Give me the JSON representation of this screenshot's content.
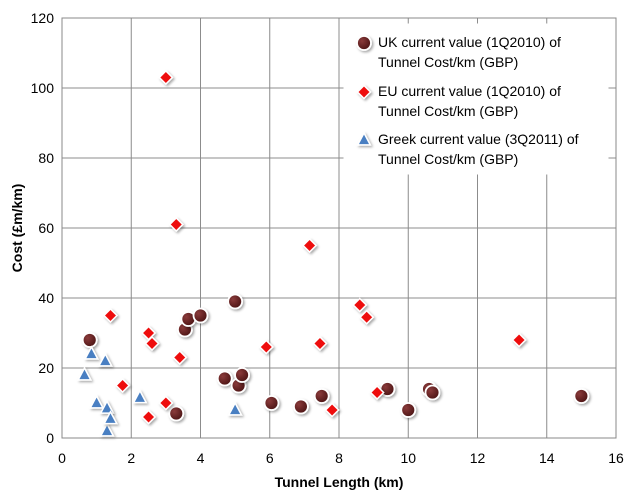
{
  "chart_data": {
    "type": "scatter",
    "title": "",
    "xlabel": "Tunnel Length (km)",
    "ylabel": "Cost (£m/km)",
    "xlim": [
      0,
      16
    ],
    "ylim": [
      0,
      120
    ],
    "xticks": [
      "0",
      "2",
      "4",
      "6",
      "8",
      "10",
      "12",
      "14",
      "16"
    ],
    "yticks": [
      "0",
      "20",
      "40",
      "60",
      "80",
      "100",
      "120"
    ],
    "grid": true,
    "legend_position": "top-right",
    "series": [
      {
        "name": "UK current value (1Q2010) of Tunnel Cost/km (GBP)",
        "legend_lines": [
          "UK current value (1Q2010) of",
          "Tunnel Cost/km (GBP)"
        ],
        "marker": "circle",
        "color": "#5a1e1e",
        "points": [
          [
            0.8,
            28
          ],
          [
            3.3,
            7
          ],
          [
            3.55,
            31
          ],
          [
            3.65,
            34
          ],
          [
            4.0,
            35
          ],
          [
            4.7,
            17
          ],
          [
            5.0,
            39
          ],
          [
            5.1,
            15
          ],
          [
            5.2,
            18
          ],
          [
            6.05,
            10
          ],
          [
            6.9,
            9
          ],
          [
            7.5,
            12
          ],
          [
            9.4,
            14
          ],
          [
            10.0,
            8
          ],
          [
            10.6,
            14
          ],
          [
            10.7,
            13
          ],
          [
            15.0,
            12
          ]
        ]
      },
      {
        "name": "EU current value (1Q2010) of Tunnel Cost/km (GBP)",
        "legend_lines": [
          "EU current value (1Q2010) of",
          "Tunnel Cost/km (GBP)"
        ],
        "marker": "diamond",
        "color": "#ee1111",
        "points": [
          [
            1.4,
            35
          ],
          [
            1.75,
            15
          ],
          [
            2.5,
            30
          ],
          [
            2.5,
            6
          ],
          [
            2.6,
            27
          ],
          [
            3.0,
            10
          ],
          [
            3.0,
            103
          ],
          [
            3.3,
            61
          ],
          [
            3.4,
            23
          ],
          [
            5.9,
            26
          ],
          [
            7.15,
            55
          ],
          [
            7.45,
            27
          ],
          [
            7.8,
            8
          ],
          [
            8.6,
            38
          ],
          [
            8.8,
            34.5
          ],
          [
            9.1,
            13
          ],
          [
            13.2,
            28
          ]
        ]
      },
      {
        "name": "Greek current value (3Q2011) of Tunnel Cost/km (GBP)",
        "legend_lines": [
          "Greek current value (3Q2011) of",
          "Tunnel Cost/km (GBP)"
        ],
        "marker": "triangle",
        "color": "#4a7fc2",
        "points": [
          [
            0.65,
            18
          ],
          [
            0.85,
            24
          ],
          [
            1.0,
            10
          ],
          [
            1.25,
            22
          ],
          [
            1.3,
            8.5
          ],
          [
            1.3,
            2
          ],
          [
            1.4,
            5.5
          ],
          [
            2.25,
            11.5
          ],
          [
            5.0,
            8
          ]
        ]
      }
    ]
  }
}
